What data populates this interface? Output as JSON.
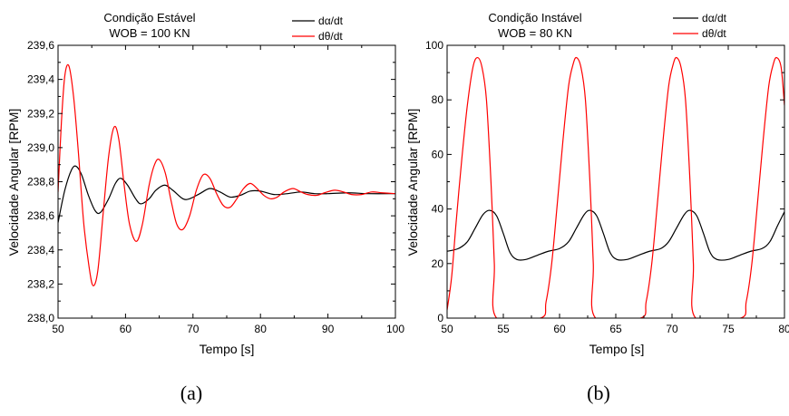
{
  "chart_data": [
    {
      "type": "line",
      "panel_caption": "(a)",
      "title": [
        "Condição Estável",
        "WOB = 100 KN"
      ],
      "xlabel": "Tempo [s]",
      "ylabel": "Velocidade Angular [RPM]",
      "xlim": [
        50,
        100
      ],
      "ylim": [
        238.0,
        239.6
      ],
      "x_ticks": [
        50,
        60,
        70,
        80,
        90,
        100
      ],
      "x_tick_labels": [
        "50",
        "60",
        "70",
        "80",
        "90",
        "100"
      ],
      "y_ticks": [
        238.0,
        238.2,
        238.4,
        238.6,
        238.8,
        239.0,
        239.2,
        239.4,
        239.6
      ],
      "y_tick_labels": [
        "238,0",
        "238,2",
        "238,4",
        "238,6",
        "238,8",
        "239,0",
        "239,2",
        "239,4",
        "239,6"
      ],
      "grid": false,
      "legend_position": "top-right",
      "series": [
        {
          "name": "dα/dt",
          "name_base": "d",
          "name_symbol": "α",
          "name_suffix": "/dt",
          "color": "#000000",
          "points": [
            [
              50,
              238.56
            ],
            [
              51,
              238.75
            ],
            [
              52,
              238.87
            ],
            [
              52.7,
              238.89
            ],
            [
              53.5,
              238.84
            ],
            [
              54.5,
              238.72
            ],
            [
              55.5,
              238.63
            ],
            [
              56.3,
              238.62
            ],
            [
              57.5,
              238.7
            ],
            [
              58.5,
              238.79
            ],
            [
              59.3,
              238.82
            ],
            [
              60.3,
              238.78
            ],
            [
              61.5,
              238.7
            ],
            [
              62.3,
              238.67
            ],
            [
              63.5,
              238.7
            ],
            [
              64.5,
              238.75
            ],
            [
              65.8,
              238.78
            ],
            [
              67,
              238.75
            ],
            [
              68.5,
              238.7
            ],
            [
              69.5,
              238.7
            ],
            [
              71,
              238.73
            ],
            [
              72.5,
              238.76
            ],
            [
              74,
              238.74
            ],
            [
              75.5,
              238.71
            ],
            [
              77,
              238.72
            ],
            [
              78.5,
              238.745
            ],
            [
              80,
              238.745
            ],
            [
              82,
              238.725
            ],
            [
              84,
              238.73
            ],
            [
              86,
              238.74
            ],
            [
              88,
              238.73
            ],
            [
              90,
              238.73
            ],
            [
              93,
              238.735
            ],
            [
              96,
              238.73
            ],
            [
              100,
              238.73
            ]
          ]
        },
        {
          "name": "dθ/dt",
          "name_base": "d",
          "name_symbol": "θ",
          "name_suffix": "/dt",
          "color": "#ff0000",
          "points": [
            [
              50,
              238.74
            ],
            [
              50.5,
              239.15
            ],
            [
              51,
              239.42
            ],
            [
              51.6,
              239.48
            ],
            [
              52.3,
              239.3
            ],
            [
              53,
              238.98
            ],
            [
              53.8,
              238.56
            ],
            [
              54.6,
              238.3
            ],
            [
              55.2,
              238.19
            ],
            [
              55.9,
              238.28
            ],
            [
              56.7,
              238.62
            ],
            [
              57.5,
              238.95
            ],
            [
              58.3,
              239.12
            ],
            [
              59,
              239.05
            ],
            [
              59.8,
              238.78
            ],
            [
              60.6,
              238.55
            ],
            [
              61.6,
              238.45
            ],
            [
              62.5,
              238.55
            ],
            [
              63.5,
              238.78
            ],
            [
              64.3,
              238.9
            ],
            [
              65,
              238.93
            ],
            [
              65.9,
              238.85
            ],
            [
              66.8,
              238.68
            ],
            [
              67.6,
              238.55
            ],
            [
              68.5,
              238.52
            ],
            [
              69.5,
              238.6
            ],
            [
              70.5,
              238.75
            ],
            [
              71.5,
              238.84
            ],
            [
              72.5,
              238.82
            ],
            [
              73.5,
              238.73
            ],
            [
              74.5,
              238.66
            ],
            [
              75.5,
              238.65
            ],
            [
              76.5,
              238.7
            ],
            [
              77.5,
              238.76
            ],
            [
              78.5,
              238.79
            ],
            [
              79.5,
              238.76
            ],
            [
              80.5,
              238.72
            ],
            [
              81.5,
              238.7
            ],
            [
              82.5,
              238.71
            ],
            [
              83.5,
              238.74
            ],
            [
              84.8,
              238.76
            ],
            [
              86,
              238.74
            ],
            [
              87,
              238.725
            ],
            [
              88.3,
              238.72
            ],
            [
              89.5,
              238.735
            ],
            [
              91,
              238.75
            ],
            [
              92.3,
              238.74
            ],
            [
              93.5,
              238.725
            ],
            [
              95,
              238.725
            ],
            [
              96.5,
              238.74
            ],
            [
              98,
              238.735
            ],
            [
              100,
              238.73
            ]
          ]
        }
      ]
    },
    {
      "type": "line",
      "panel_caption": "(b)",
      "title": [
        "Condição Instável",
        "WOB = 80 KN"
      ],
      "xlabel": "Tempo [s]",
      "ylabel": "Velocidade Angular [RPM]",
      "xlim": [
        50,
        80
      ],
      "ylim": [
        0,
        100
      ],
      "x_ticks": [
        50,
        55,
        60,
        65,
        70,
        75,
        80
      ],
      "x_tick_labels": [
        "50",
        "55",
        "60",
        "65",
        "70",
        "75",
        "80"
      ],
      "y_ticks": [
        0,
        20,
        40,
        60,
        80,
        100
      ],
      "y_tick_labels": [
        "0",
        "20",
        "40",
        "60",
        "80",
        "100"
      ],
      "grid": false,
      "legend_position": "top-right",
      "series": [
        {
          "name": "dα/dt",
          "name_base": "d",
          "name_symbol": "α",
          "name_suffix": "/dt",
          "color": "#000000",
          "points": [
            [
              50,
              24.5
            ],
            [
              51,
              25.5
            ],
            [
              51.8,
              28
            ],
            [
              52.5,
              33
            ],
            [
              53.2,
              38
            ],
            [
              53.8,
              39.5
            ],
            [
              54.4,
              37.5
            ],
            [
              55,
              31
            ],
            [
              55.6,
              24
            ],
            [
              56.2,
              21.5
            ],
            [
              57,
              21.5
            ],
            [
              58,
              23
            ],
            [
              59,
              24.5
            ],
            [
              60,
              25.5
            ],
            [
              60.8,
              28
            ],
            [
              61.5,
              33
            ],
            [
              62.2,
              38
            ],
            [
              62.7,
              39.5
            ],
            [
              63.3,
              37.5
            ],
            [
              63.9,
              31
            ],
            [
              64.5,
              24
            ],
            [
              65.1,
              21.5
            ],
            [
              66,
              21.5
            ],
            [
              67,
              23
            ],
            [
              68,
              24.5
            ],
            [
              69,
              25.5
            ],
            [
              69.7,
              28
            ],
            [
              70.4,
              33
            ],
            [
              71.1,
              38
            ],
            [
              71.6,
              39.5
            ],
            [
              72.2,
              37.5
            ],
            [
              72.8,
              31
            ],
            [
              73.4,
              24
            ],
            [
              74,
              21.5
            ],
            [
              75,
              21.5
            ],
            [
              76,
              23
            ],
            [
              77,
              24.5
            ],
            [
              78,
              25.5
            ],
            [
              78.7,
              28
            ],
            [
              79.4,
              34
            ],
            [
              80,
              39
            ]
          ]
        },
        {
          "name": "dθ/dt",
          "name_base": "d",
          "name_symbol": "θ",
          "name_suffix": "/dt",
          "color": "#ff0000",
          "points": [
            [
              50,
              3
            ],
            [
              50.4,
              15
            ],
            [
              50.8,
              35
            ],
            [
              51.3,
              58
            ],
            [
              51.8,
              78
            ],
            [
              52.3,
              92
            ],
            [
              52.7,
              95.5
            ],
            [
              53.1,
              92
            ],
            [
              53.5,
              80
            ],
            [
              53.9,
              50
            ],
            [
              54.2,
              20
            ],
            [
              54.4,
              0
            ],
            [
              58.3,
              0
            ],
            [
              58.8,
              6
            ],
            [
              59.3,
              20
            ],
            [
              59.8,
              42
            ],
            [
              60.3,
              65
            ],
            [
              60.8,
              85
            ],
            [
              61.2,
              93
            ],
            [
              61.5,
              95.5
            ],
            [
              61.9,
              92
            ],
            [
              62.3,
              80
            ],
            [
              62.7,
              50
            ],
            [
              63,
              20
            ],
            [
              63.2,
              0
            ],
            [
              67.2,
              0
            ],
            [
              67.7,
              6
            ],
            [
              68.2,
              20
            ],
            [
              68.7,
              42
            ],
            [
              69.2,
              65
            ],
            [
              69.7,
              85
            ],
            [
              70.1,
              93
            ],
            [
              70.4,
              95.5
            ],
            [
              70.8,
              92
            ],
            [
              71.2,
              80
            ],
            [
              71.6,
              50
            ],
            [
              71.9,
              20
            ],
            [
              72.1,
              0
            ],
            [
              76.1,
              0
            ],
            [
              76.6,
              6
            ],
            [
              77.1,
              20
            ],
            [
              77.6,
              42
            ],
            [
              78.1,
              65
            ],
            [
              78.6,
              85
            ],
            [
              79,
              93
            ],
            [
              79.3,
              95.5
            ],
            [
              79.7,
              92
            ],
            [
              80,
              78
            ]
          ]
        }
      ]
    }
  ]
}
